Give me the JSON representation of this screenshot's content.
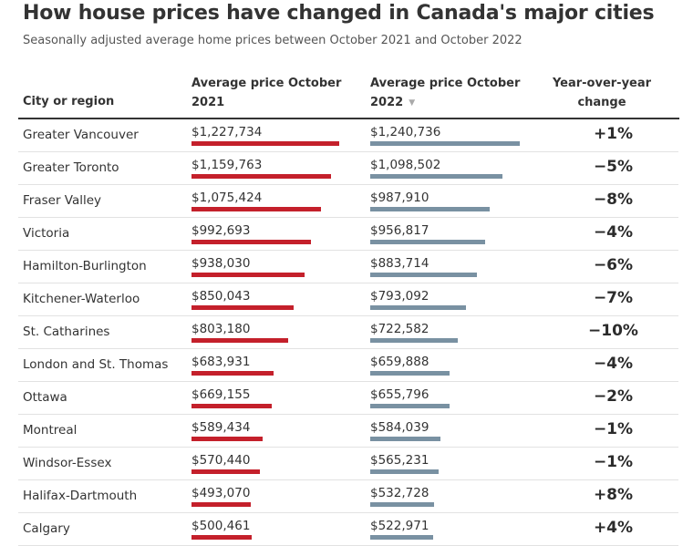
{
  "title": "How house prices have changed in Canada's major cities",
  "subtitle": "Seasonally adjusted average home prices between October 2021 and October 2022",
  "headers": {
    "city": "City or region",
    "price_2021": "Average price October 2021",
    "price_2022": "Average price October 2022",
    "change": "Year-over-year change",
    "sort_icon": "▼"
  },
  "colors": {
    "bar_2021": "#c4202b",
    "bar_2022": "#7991a2"
  },
  "chart_data": {
    "type": "table",
    "columns": [
      "City or region",
      "Average price October 2021",
      "Average price October 2022",
      "Year-over-year change"
    ],
    "rows": [
      {
        "city": "Greater Vancouver",
        "price_2021": 1227734,
        "price_2021_label": "$1,227,734",
        "price_2022": 1240736,
        "price_2022_label": "$1,240,736",
        "change": "+1%"
      },
      {
        "city": "Greater Toronto",
        "price_2021": 1159763,
        "price_2021_label": "$1,159,763",
        "price_2022": 1098502,
        "price_2022_label": "$1,098,502",
        "change": "−5%"
      },
      {
        "city": "Fraser Valley",
        "price_2021": 1075424,
        "price_2021_label": "$1,075,424",
        "price_2022": 987910,
        "price_2022_label": "$987,910",
        "change": "−8%"
      },
      {
        "city": "Victoria",
        "price_2021": 992693,
        "price_2021_label": "$992,693",
        "price_2022": 956817,
        "price_2022_label": "$956,817",
        "change": "−4%"
      },
      {
        "city": "Hamilton-Burlington",
        "price_2021": 938030,
        "price_2021_label": "$938,030",
        "price_2022": 883714,
        "price_2022_label": "$883,714",
        "change": "−6%"
      },
      {
        "city": "Kitchener-Waterloo",
        "price_2021": 850043,
        "price_2021_label": "$850,043",
        "price_2022": 793092,
        "price_2022_label": "$793,092",
        "change": "−7%"
      },
      {
        "city": "St. Catharines",
        "price_2021": 803180,
        "price_2021_label": "$803,180",
        "price_2022": 722582,
        "price_2022_label": "$722,582",
        "change": "−10%"
      },
      {
        "city": "London and St. Thomas",
        "price_2021": 683931,
        "price_2021_label": "$683,931",
        "price_2022": 659888,
        "price_2022_label": "$659,888",
        "change": "−4%"
      },
      {
        "city": "Ottawa",
        "price_2021": 669155,
        "price_2021_label": "$669,155",
        "price_2022": 655796,
        "price_2022_label": "$655,796",
        "change": "−2%"
      },
      {
        "city": "Montreal",
        "price_2021": 589434,
        "price_2021_label": "$589,434",
        "price_2022": 584039,
        "price_2022_label": "$584,039",
        "change": "−1%"
      },
      {
        "city": "Windsor-Essex",
        "price_2021": 570440,
        "price_2021_label": "$570,440",
        "price_2022": 565231,
        "price_2022_label": "$565,231",
        "change": "−1%"
      },
      {
        "city": "Halifax-Dartmouth",
        "price_2021": 493070,
        "price_2021_label": "$493,070",
        "price_2022": 532728,
        "price_2022_label": "$532,728",
        "change": "+8%"
      },
      {
        "city": "Calgary",
        "price_2021": 500461,
        "price_2021_label": "$500,461",
        "price_2022": 522971,
        "price_2022_label": "$522,971",
        "change": "+4%"
      }
    ]
  }
}
